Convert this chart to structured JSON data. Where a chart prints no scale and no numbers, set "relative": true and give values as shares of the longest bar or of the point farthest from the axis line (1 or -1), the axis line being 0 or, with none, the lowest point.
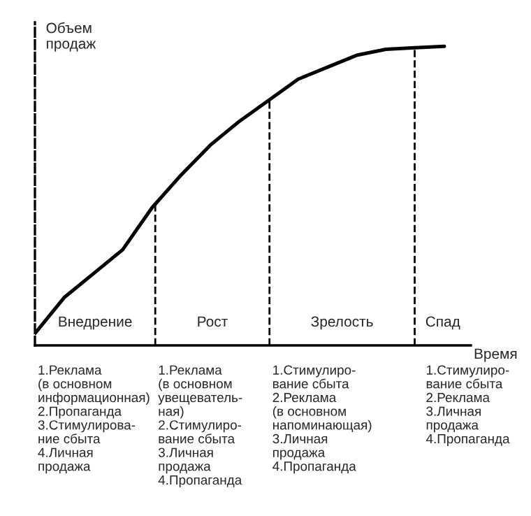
{
  "chart_data": {
    "type": "line",
    "relative": true,
    "xlabel": "Время",
    "ylabel": "Объем продаж",
    "categories": [
      null,
      null,
      null,
      null,
      null,
      null,
      null,
      null,
      null,
      null,
      null,
      null,
      null,
      null,
      null
    ],
    "series": [
      {
        "color": "#000000",
        "values": [
          0.04,
          0.16,
          0.24,
          0.32,
          0.46,
          0.57,
          0.67,
          0.75,
          0.82,
          0.89,
          0.93,
          0.97,
          0.99,
          0.995,
          1.0
        ]
      }
    ],
    "annotations": [
      "Внедрение",
      "Рост",
      "Зрелость",
      "Спад",
      "1.Реклама\n(в основном\nинформационная)\n2.Пропаганда\n3.Стимулирова-\nние сбыта\n4.Личная\nпродажа",
      "1.Реклама\n(в основном\nувещеватель-\nная)\n2.Стимулиро-\nвание сбыта\n3.Личная\nпродажа\n4.Пропаганда",
      "1.Стимулиро-\nвание сбыта\n2.Реклама\n(в основном\nнапоминающая)\n3.Личная\nпродажа\n4.Пропаганда",
      "1.Стимулиро-\nвание сбыта\n2.Реклама\n3.Личная\nпродажа\n4.Пропаганда"
    ],
    "marker": "none",
    "line_style": "solid",
    "legend": false
  }
}
